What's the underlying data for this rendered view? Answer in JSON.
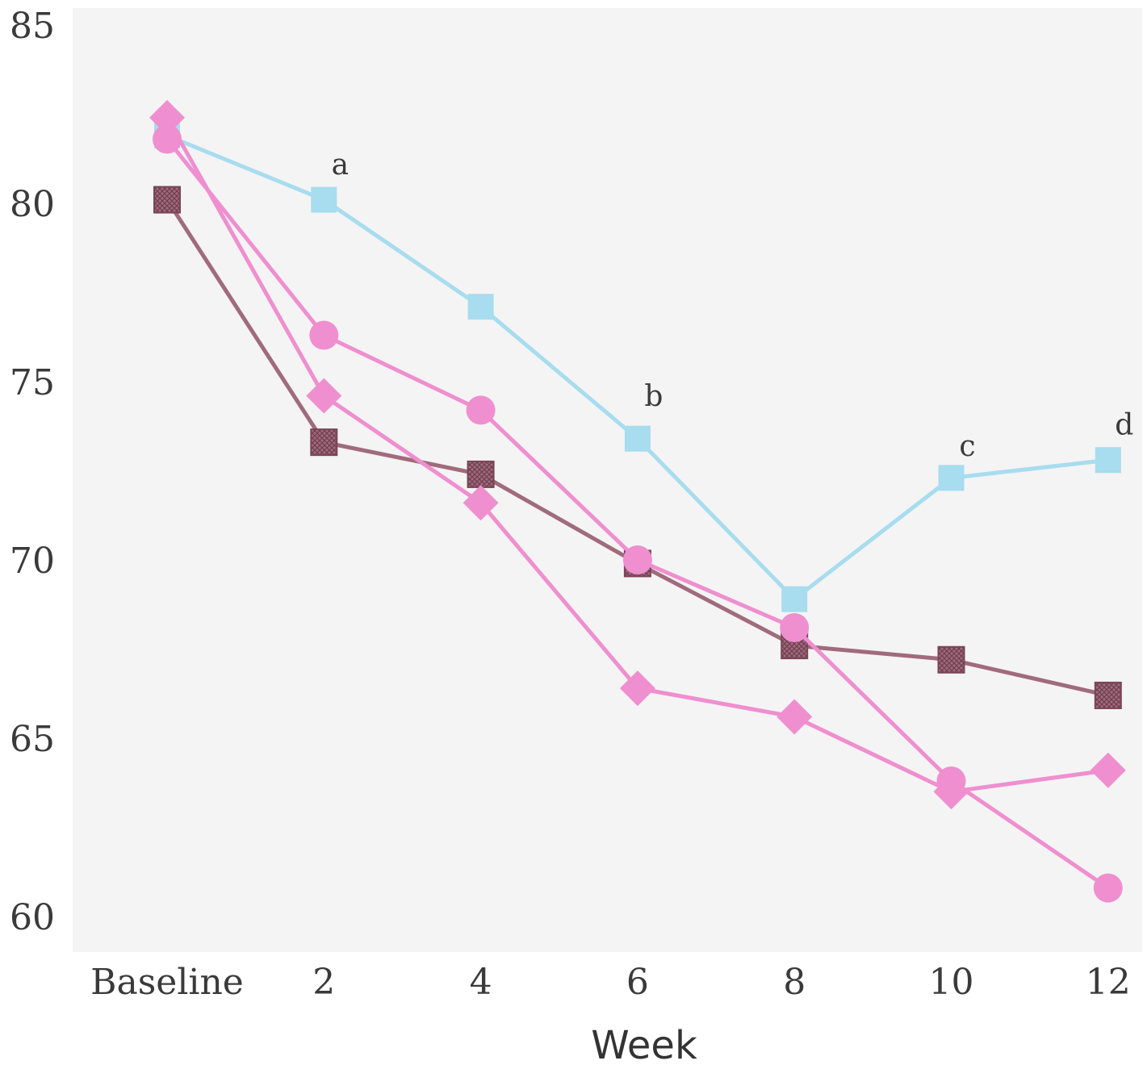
{
  "chart_data": {
    "type": "line",
    "title": "",
    "xlabel": "Week",
    "ylabel": "",
    "x": [
      "Baseline",
      "2",
      "4",
      "6",
      "8",
      "10",
      "12"
    ],
    "ylim": [
      59.5,
      85
    ],
    "yticks": [
      60,
      65,
      70,
      75,
      80,
      85
    ],
    "grid": false,
    "legend": "none",
    "series": [
      {
        "color": "#a8dcef",
        "marker": "square",
        "values": [
          81.9,
          80.1,
          77.1,
          73.4,
          68.9,
          72.3,
          72.8
        ]
      },
      {
        "color": "#a06b7c",
        "marker": "square-hatched",
        "values": [
          80.1,
          73.3,
          72.4,
          69.9,
          67.6,
          67.2,
          66.2
        ]
      },
      {
        "color": "#ef8fcf",
        "marker": "circle",
        "values": [
          81.8,
          76.3,
          74.2,
          70.0,
          68.1,
          63.8,
          60.8
        ]
      },
      {
        "color": "#ef8fcf",
        "marker": "diamond",
        "values": [
          82.4,
          74.6,
          71.6,
          66.4,
          65.6,
          63.5,
          64.1
        ]
      }
    ],
    "annotations": [
      {
        "text": "a",
        "x": "2",
        "y": 81.0
      },
      {
        "text": "b",
        "x": "6",
        "y": 74.5
      },
      {
        "text": "c",
        "x": "10",
        "y": 73.1
      },
      {
        "text": "d",
        "x": "12",
        "y": 73.7
      }
    ]
  }
}
